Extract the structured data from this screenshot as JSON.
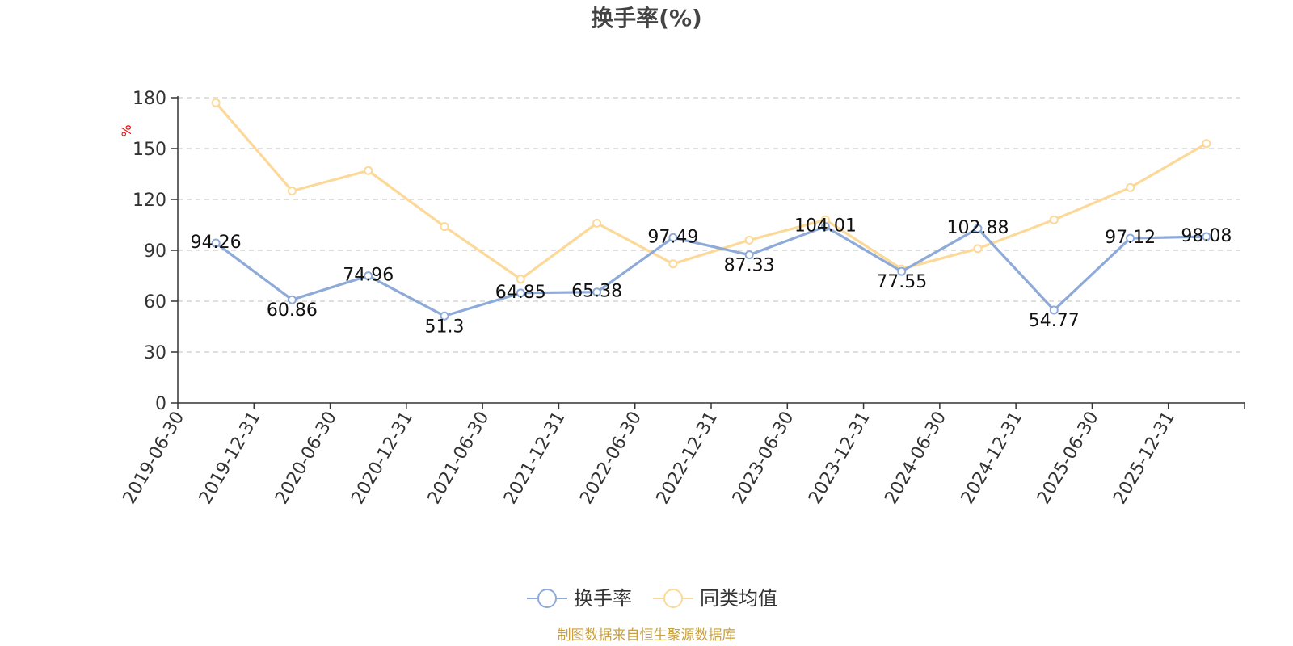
{
  "chart_data": {
    "type": "line",
    "title": "换手率(%)",
    "ylabel": "%",
    "ylim": [
      0,
      180
    ],
    "yticks": [
      0,
      30,
      60,
      90,
      120,
      150,
      180
    ],
    "grid": true,
    "legend_position": "bottom-center",
    "categories": [
      "2019-06-30",
      "2019-12-31",
      "2020-06-30",
      "2020-12-31",
      "2021-06-30",
      "2021-12-31",
      "2022-06-30",
      "2022-12-31",
      "2023-06-30",
      "2023-12-31",
      "2024-06-30",
      "2024-12-31",
      "2025-06-30",
      "2025-12-31"
    ],
    "series": [
      {
        "name": "换手率",
        "color": "#8eaad8",
        "show_labels": true,
        "values": [
          94.26,
          60.86,
          74.96,
          51.3,
          64.85,
          65.38,
          97.49,
          87.33,
          104.01,
          77.55,
          102.88,
          54.77,
          97.12,
          98.08
        ]
      },
      {
        "name": "同类均值",
        "color": "#fcd899",
        "show_labels": false,
        "values": [
          177,
          125,
          137,
          104,
          73,
          106,
          82,
          96,
          108,
          79,
          91,
          108,
          127,
          153
        ]
      }
    ],
    "source": "制图数据来自恒生聚源数据库"
  }
}
